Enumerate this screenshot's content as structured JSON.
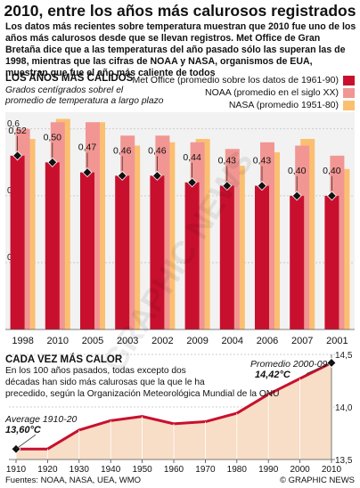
{
  "title": "2010, entre los años más calurosos registrados",
  "intro": "Los datos más recientes sobre temperatura muestran que 2010 fue uno de los años más calurosos desde que se llevan registros. Met Office de Gran Bretaña dice que a las temperaturas del año pasado sólo las superan las de 1998, mientras que las cifras de NOAA y NASA, organismos de EUA, muestran que fue el año más caliente de todos",
  "top": {
    "section_title": "LOS AÑOS MÁS CÁLIDOS",
    "subtitle_line1": "Grados centígrados sobrel el",
    "subtitle_line2": "promedio de temperatura a largo plazo"
  },
  "bottom": {
    "section_title": "CADA VEZ MÁS CALOR",
    "text_line1": "En los 100 años pasados, todas excepto dos",
    "text_line2": "décadas han sido más calurosas que la que le ha",
    "text_line3": "precedido, según la Organización Meteorológica Mundial de la ONU",
    "ann_end_label": "Promedio 2000-09",
    "ann_end_value": "14,42°C",
    "ann_start_label": "Average 1910-20",
    "ann_start_value": "13,60°C"
  },
  "footer": {
    "sources": "Fuentes: NOAA, NASA, UEA, WMO",
    "credit": "© GRAPHIC NEWS"
  },
  "watermark": "GRAPHIC NEWS",
  "colors": {
    "met": "#c8102e",
    "noaa": "#f29693",
    "nasa": "#fbbf72",
    "area": "#f8ddc7",
    "line": "#c8102e",
    "panel": "#f2f2f2",
    "grid": "#c0c0c0"
  },
  "chart_data": [
    {
      "type": "bar",
      "title": "LOS AÑOS MÁS CÁLIDOS",
      "ylabel": "Grados centígrados sobrel el promedio de temperatura a largo plazo",
      "categories": [
        "1998",
        "2010",
        "2005",
        "2003",
        "2002",
        "2009",
        "2004",
        "2006",
        "2007",
        "2001"
      ],
      "ylim": [
        0,
        0.65
      ],
      "yticks": [
        0.2,
        0.4,
        0.6
      ],
      "ytick_labels": [
        "0,2",
        "0,4",
        "0,6"
      ],
      "series": [
        {
          "name": "Met Office (promedio sobre los datos de 1961-90)",
          "values": [
            0.52,
            0.5,
            0.47,
            0.46,
            0.46,
            0.44,
            0.43,
            0.43,
            0.4,
            0.4
          ],
          "labels": [
            "0,52",
            "0,50",
            "0,47",
            "0,46",
            "0,46",
            "0,44",
            "0,43",
            "0,43",
            "0,40",
            "0,40"
          ]
        },
        {
          "name": "NOAA (promedio en el siglo XX)",
          "values": [
            0.6,
            0.62,
            0.62,
            0.58,
            0.58,
            0.56,
            0.54,
            0.56,
            0.55,
            0.52
          ]
        },
        {
          "name": "NASA (promedio 1951-80)",
          "values": [
            0.57,
            0.63,
            0.62,
            0.55,
            0.56,
            0.57,
            0.49,
            0.53,
            0.57,
            0.48
          ]
        }
      ],
      "grid": true,
      "legend": "top-right"
    },
    {
      "type": "area",
      "title": "CADA VEZ MÁS CALOR",
      "x": [
        1910,
        1920,
        1930,
        1940,
        1950,
        1960,
        1970,
        1980,
        1990,
        2000,
        2010
      ],
      "xtick_labels": [
        "1910",
        "1920",
        "1930",
        "1940",
        "1950",
        "1960",
        "1970",
        "1980",
        "1990",
        "2000",
        "2010"
      ],
      "y": [
        13.6,
        13.6,
        13.78,
        13.87,
        13.91,
        13.84,
        13.86,
        13.94,
        14.12,
        14.27,
        14.42
      ],
      "ylim": [
        13.5,
        14.5
      ],
      "yticks": [
        13.5,
        14.0,
        14.5
      ],
      "ytick_labels": [
        "13,5",
        "14,0",
        "14,5"
      ],
      "grid": true
    }
  ]
}
